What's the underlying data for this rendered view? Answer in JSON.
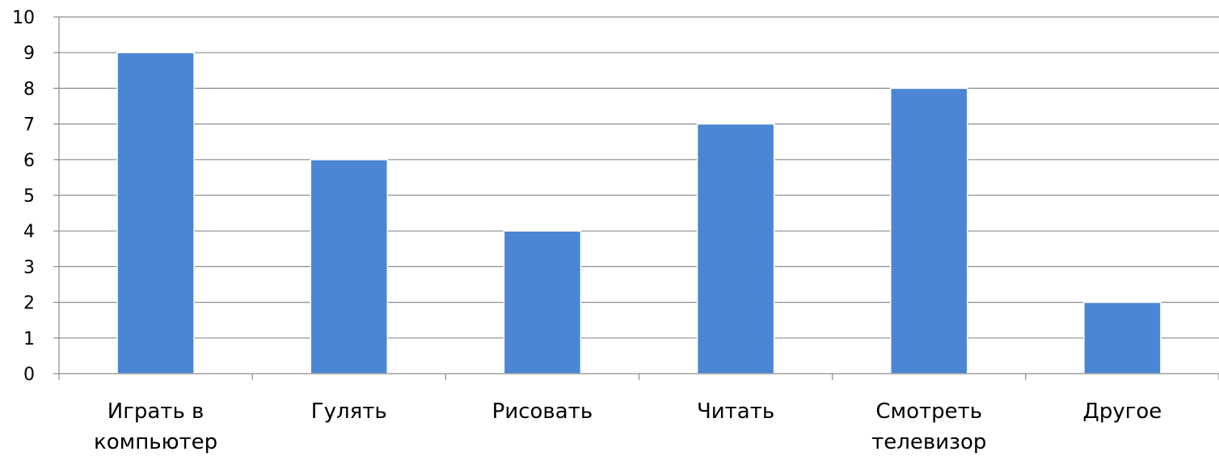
{
  "chart_data": {
    "type": "bar",
    "categories": [
      [
        "Играть в",
        "компьютер"
      ],
      [
        "Гулять"
      ],
      [
        "Рисовать"
      ],
      [
        "Читать"
      ],
      [
        "Смотреть",
        "телевизор"
      ],
      [
        "Другое"
      ]
    ],
    "values": [
      9,
      6,
      4,
      7,
      8,
      2
    ],
    "title": "",
    "xlabel": "",
    "ylabel": "",
    "ylim": [
      0,
      10
    ],
    "yticks": [
      0,
      1,
      2,
      3,
      4,
      5,
      6,
      7,
      8,
      9,
      10
    ],
    "grid": true,
    "legend": "none",
    "colors": {
      "bar": "#4a86d4",
      "grid": "#8c8c8c",
      "axis": "#8c8c8c"
    }
  }
}
